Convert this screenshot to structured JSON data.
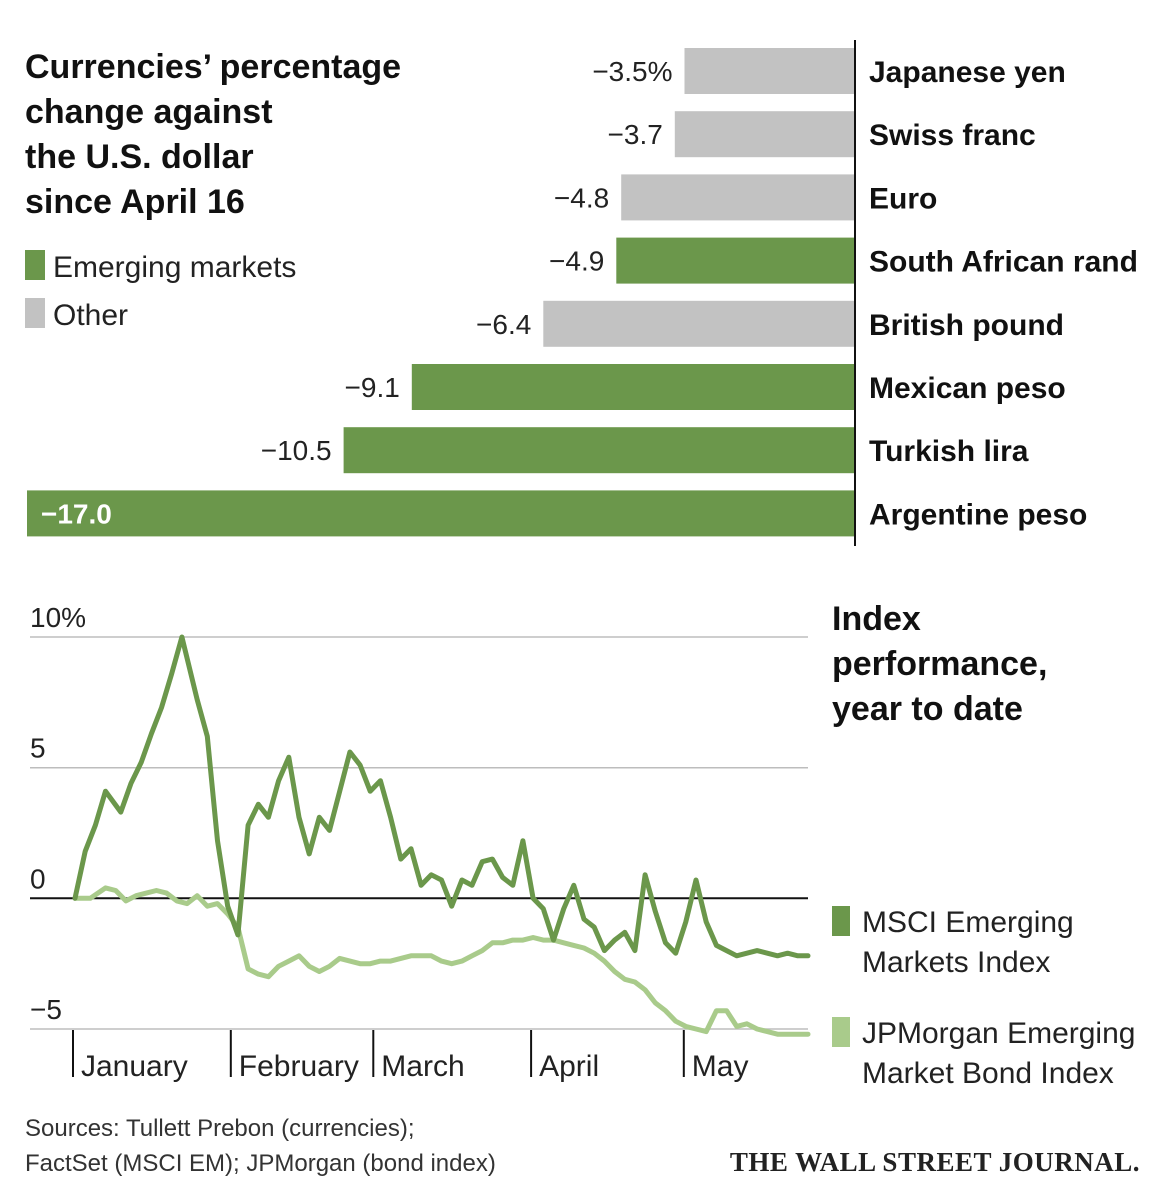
{
  "colors": {
    "emerging": "#6b974b",
    "other": "#c2c2c2",
    "msci_line": "#6b974b",
    "bond_line": "#a9cb8b",
    "gridline": "#bdbdbd",
    "axis": "#111111"
  },
  "chart_data": [
    {
      "type": "bar",
      "orientation": "horizontal",
      "title": [
        "Currencies’ percentage",
        "change against",
        "the U.S. dollar",
        "since April 16"
      ],
      "legend": [
        {
          "label": "Emerging markets",
          "group": "emerging"
        },
        {
          "label": "Other",
          "group": "other"
        }
      ],
      "xlim": [
        -17.0,
        0
      ],
      "categories": [
        "Japanese yen",
        "Swiss franc",
        "Euro",
        "South African rand",
        "British pound",
        "Mexican peso",
        "Turkish lira",
        "Argentine peso"
      ],
      "values": [
        -3.5,
        -3.7,
        -4.8,
        -4.9,
        -6.4,
        -9.1,
        -10.5,
        -17.0
      ],
      "value_labels": [
        "−3.5%",
        "−3.7",
        "−4.8",
        "−4.9",
        "−6.4",
        "−9.1",
        "−10.5",
        "−17.0"
      ],
      "groups": [
        "other",
        "other",
        "other",
        "emerging",
        "other",
        "emerging",
        "emerging",
        "emerging"
      ]
    },
    {
      "type": "line",
      "title": [
        "Index",
        "performance,",
        "year to date"
      ],
      "ylim": [
        -5,
        10
      ],
      "yticks": [
        10,
        5,
        0,
        -5
      ],
      "ytick_labels": [
        "10%",
        "5",
        "0",
        "−5"
      ],
      "months": [
        "January",
        "February",
        "March",
        "April",
        "May"
      ],
      "month_starts": [
        0,
        31,
        59,
        90,
        120
      ],
      "x_range": [
        0,
        144
      ],
      "series": [
        {
          "name": "MSCI Emerging Markets Index",
          "legend_lines": [
            "MSCI Emerging",
            "Markets Index"
          ],
          "x": [
            0,
            2,
            4,
            6,
            9,
            11,
            13,
            15,
            17,
            19,
            21,
            24,
            26,
            28,
            30,
            32,
            34,
            36,
            38,
            40,
            42,
            44,
            46,
            48,
            50,
            52,
            54,
            56,
            58,
            60,
            62,
            64,
            66,
            68,
            70,
            72,
            74,
            76,
            78,
            80,
            82,
            84,
            86,
            88,
            90,
            92,
            94,
            96,
            98,
            100,
            102,
            104,
            106,
            108,
            110,
            112,
            114,
            116,
            118,
            120,
            122,
            124,
            126,
            128,
            130,
            132,
            134,
            136,
            138,
            140,
            142,
            144
          ],
          "y": [
            0.0,
            1.8,
            2.8,
            4.1,
            3.3,
            4.4,
            5.2,
            6.3,
            7.3,
            8.6,
            10.0,
            7.6,
            6.2,
            2.2,
            -0.3,
            -1.4,
            2.8,
            3.6,
            3.1,
            4.5,
            5.4,
            3.1,
            1.7,
            3.1,
            2.6,
            4.1,
            5.6,
            5.1,
            4.1,
            4.5,
            3.1,
            1.5,
            1.9,
            0.5,
            0.9,
            0.7,
            -0.3,
            0.7,
            0.5,
            1.4,
            1.5,
            0.8,
            0.5,
            2.2,
            0.0,
            -0.4,
            -1.6,
            -0.4,
            0.5,
            -0.8,
            -1.1,
            -2.0,
            -1.6,
            -1.3,
            -2.0,
            0.9,
            -0.5,
            -1.7,
            -2.1,
            -0.9,
            0.7,
            -0.9,
            -1.8,
            -2.0,
            -2.2,
            -2.1,
            -2.0,
            -2.1,
            -2.2,
            -2.1,
            -2.2,
            -2.2
          ],
          "color_key": "msci_line"
        },
        {
          "name": "JPMorgan Emerging Market Bond Index",
          "legend_lines": [
            "JPMorgan Emerging",
            "Market Bond Index"
          ],
          "x": [
            0,
            3,
            6,
            8,
            10,
            12,
            14,
            16,
            18,
            20,
            22,
            24,
            26,
            28,
            30,
            32,
            34,
            36,
            38,
            40,
            42,
            44,
            46,
            48,
            50,
            52,
            54,
            56,
            58,
            60,
            62,
            64,
            66,
            68,
            70,
            72,
            74,
            76,
            78,
            80,
            82,
            84,
            86,
            88,
            90,
            92,
            94,
            96,
            98,
            100,
            102,
            104,
            106,
            108,
            110,
            112,
            114,
            116,
            118,
            120,
            122,
            124,
            126,
            128,
            130,
            132,
            134,
            136,
            138,
            140,
            142,
            144
          ],
          "y": [
            0.0,
            0.0,
            0.4,
            0.3,
            -0.1,
            0.1,
            0.2,
            0.3,
            0.2,
            -0.1,
            -0.2,
            0.1,
            -0.3,
            -0.2,
            -0.6,
            -1.1,
            -2.7,
            -2.9,
            -3.0,
            -2.6,
            -2.4,
            -2.2,
            -2.6,
            -2.8,
            -2.6,
            -2.3,
            -2.4,
            -2.5,
            -2.5,
            -2.4,
            -2.4,
            -2.3,
            -2.2,
            -2.2,
            -2.2,
            -2.4,
            -2.5,
            -2.4,
            -2.2,
            -2.0,
            -1.7,
            -1.7,
            -1.6,
            -1.6,
            -1.5,
            -1.6,
            -1.6,
            -1.7,
            -1.8,
            -1.9,
            -2.1,
            -2.4,
            -2.8,
            -3.1,
            -3.2,
            -3.5,
            -4.0,
            -4.3,
            -4.7,
            -4.9,
            -5.0,
            -5.1,
            -4.3,
            -4.3,
            -4.9,
            -4.8,
            -5.0,
            -5.1,
            -5.2,
            -5.2,
            -5.2,
            -5.2
          ],
          "color_key": "bond_line"
        }
      ]
    }
  ],
  "sources": [
    "Sources: Tullett Prebon (currencies);",
    "FactSet (MSCI EM); JPMorgan (bond index)"
  ],
  "brand": "THE WALL STREET JOURNAL."
}
